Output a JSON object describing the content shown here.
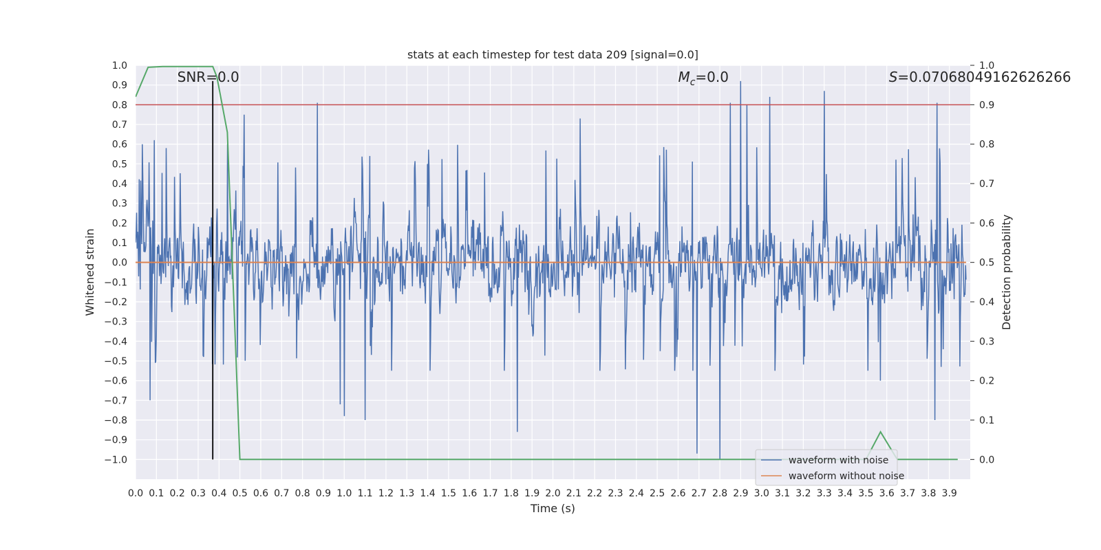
{
  "chart_data": {
    "type": "line",
    "title": "stats at each timestep for test data 209 [signal=0.0]",
    "xlabel": "Time (s)",
    "ylabel": "Whitened strain",
    "y2label": "Detection probability",
    "xlim": [
      0.0,
      4.0
    ],
    "ylim": [
      -1.1,
      1.0
    ],
    "y2lim": [
      -0.05,
      1.0
    ],
    "x_ticks": [
      0.0,
      0.1,
      0.2,
      0.3,
      0.4,
      0.5,
      0.6,
      0.7,
      0.8,
      0.9,
      1.0,
      1.1,
      1.2,
      1.3,
      1.4,
      1.5,
      1.6,
      1.7,
      1.8,
      1.9,
      2.0,
      2.1,
      2.2,
      2.3,
      2.4,
      2.5,
      2.6,
      2.7,
      2.8,
      2.9,
      3.0,
      3.1,
      3.2,
      3.3,
      3.4,
      3.5,
      3.6,
      3.7,
      3.8,
      3.9
    ],
    "x_tick_labels": [
      "0.0",
      "0.1",
      "0.2",
      "0.3",
      "0.4",
      "0.5",
      "0.6",
      "0.7",
      "0.8",
      "0.9",
      "1.0",
      "1.1",
      "1.2",
      "1.3",
      "1.4",
      "1.5",
      "1.6",
      "1.7",
      "1.8",
      "1.9",
      "2.0",
      "2.1",
      "2.2",
      "2.3",
      "2.4",
      "2.5",
      "2.6",
      "2.7",
      "2.8",
      "2.9",
      "3.0",
      "3.1",
      "3.2",
      "3.3",
      "3.4",
      "3.5",
      "3.6",
      "3.7",
      "3.8",
      "3.9"
    ],
    "y_ticks": [
      1.0,
      0.9,
      0.8,
      0.7,
      0.6,
      0.5,
      0.4,
      0.3,
      0.2,
      0.1,
      0.0,
      -0.1,
      -0.2,
      -0.3,
      -0.4,
      -0.5,
      -0.6,
      -0.7,
      -0.8,
      -0.9,
      -1.0
    ],
    "y_tick_labels": [
      "1.0",
      "0.9",
      "0.8",
      "0.7",
      "0.6",
      "0.5",
      "0.4",
      "0.3",
      "0.2",
      "0.1",
      "0.0",
      "−0.1",
      "−0.2",
      "−0.3",
      "−0.4",
      "−0.5",
      "−0.6",
      "−0.7",
      "−0.8",
      "−0.9",
      "−1.0"
    ],
    "y2_ticks": [
      1.0,
      0.9,
      0.8,
      0.7,
      0.6,
      0.5,
      0.4,
      0.3,
      0.2,
      0.1,
      0.0
    ],
    "y2_tick_labels": [
      "1.0",
      "0.9",
      "0.8",
      "0.7",
      "0.6",
      "0.5",
      "0.4",
      "0.3",
      "0.2",
      "0.1",
      "0.0"
    ],
    "grid": true,
    "legend_position": "bottom-right",
    "series": [
      {
        "name": "waveform with noise",
        "color": "#4c72b0",
        "x_range": [
          0.0,
          3.98
        ],
        "samples": 1600,
        "envelope_approx": [
          -0.45,
          0.5
        ],
        "extremes": [
          {
            "x": 0.07,
            "y": -0.7
          },
          {
            "x": 0.09,
            "y": 0.62
          },
          {
            "x": 0.44,
            "y": 0.6
          },
          {
            "x": 0.52,
            "y": 0.75
          },
          {
            "x": 0.87,
            "y": 0.81
          },
          {
            "x": 0.98,
            "y": -0.72
          },
          {
            "x": 1.0,
            "y": -0.78
          },
          {
            "x": 1.1,
            "y": -0.8
          },
          {
            "x": 1.83,
            "y": -0.86
          },
          {
            "x": 2.13,
            "y": 0.73
          },
          {
            "x": 2.69,
            "y": -0.97
          },
          {
            "x": 2.8,
            "y": -1.0
          },
          {
            "x": 2.85,
            "y": 0.81
          },
          {
            "x": 2.9,
            "y": 0.92
          },
          {
            "x": 2.93,
            "y": 0.8
          },
          {
            "x": 3.04,
            "y": 0.84
          },
          {
            "x": 3.3,
            "y": 0.87
          },
          {
            "x": 3.57,
            "y": -0.6
          },
          {
            "x": 3.83,
            "y": -0.8
          },
          {
            "x": 3.84,
            "y": 0.81
          }
        ]
      },
      {
        "name": "waveform without noise",
        "color": "#dd8452",
        "x": [
          0.0,
          3.98
        ],
        "y": [
          0.0,
          0.0
        ]
      },
      {
        "name": "",
        "axis": "right",
        "color": "#55a868",
        "x": [
          0.0,
          0.06,
          0.13,
          0.25,
          0.37,
          0.39,
          0.44,
          0.5,
          0.6,
          1.0,
          2.0,
          3.0,
          3.5,
          3.57,
          3.65,
          3.7,
          3.94
        ],
        "y": [
          0.92,
          0.995,
          0.997,
          0.997,
          0.997,
          0.97,
          0.83,
          0.0,
          0.0,
          0.0,
          0.0,
          0.0,
          0.0,
          0.07,
          0.0,
          0.0,
          0.0
        ]
      },
      {
        "name": "",
        "axis": "right",
        "color": "#c44e52",
        "x": [
          0.0,
          4.0
        ],
        "y": [
          0.9,
          0.9
        ]
      },
      {
        "name": "",
        "color": "#000000",
        "x": [
          0.37,
          0.37
        ],
        "y": [
          -1.0,
          0.92
        ]
      }
    ],
    "annotations": [
      {
        "text": "SNR=0.0",
        "x": 0.2,
        "y": 0.94
      },
      {
        "text": "=0.0",
        "symbol": "M",
        "subscript": "c",
        "x": 2.6,
        "y": 0.94
      },
      {
        "text": "=0.07068049162626266",
        "symbol": "S",
        "x": 3.61,
        "y": 0.94
      }
    ]
  }
}
